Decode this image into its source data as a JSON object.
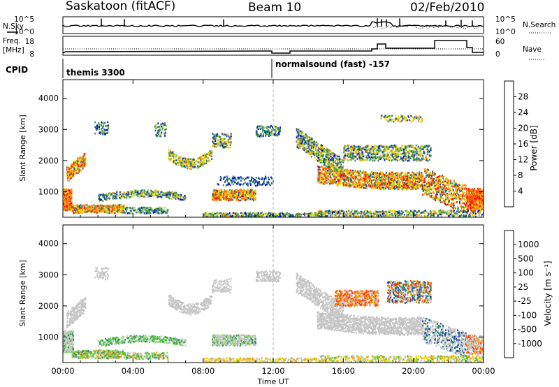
{
  "header": {
    "title": "Saskatoon (fitACF)",
    "beam": "Beam 10",
    "date": "02/Feb/2010"
  },
  "strip_labels": {
    "nsky": "N.Sky",
    "nsearch": "N.Search",
    "freq_top": "Freq.",
    "freq_unit": "[MHz]",
    "nave": "Nave",
    "cpid": "CPID"
  },
  "noise_axis": {
    "left_ticks": [
      "10^5",
      "10^0"
    ],
    "right_ticks": [
      "10^5",
      "10^0"
    ]
  },
  "freq_axis": {
    "left_ticks": [
      "18",
      "8"
    ],
    "right_ticks": [
      "60",
      "0"
    ]
  },
  "cpid_labels": [
    "themis 3300",
    "normalsound (fast) -157"
  ],
  "colors": {
    "scatter_ground": "#c8c8c8",
    "bar_frame": "#000000"
  },
  "chart_data": [
    {
      "type": "heatmap",
      "panel": "power",
      "ylabel": "Slant Range [km]",
      "ylim": [
        180,
        4600
      ],
      "y_ticks": [
        "1000",
        "2000",
        "3000",
        "4000"
      ],
      "x_ticks": [
        "00:00",
        "04:00",
        "08:00",
        "12:00",
        "16:00",
        "20:00",
        "00:00"
      ],
      "xlim_hours": [
        0,
        24
      ],
      "colorbar_label": "Power [dB]",
      "colorbar_ticks": [
        "28",
        "24",
        "20",
        "16",
        "12",
        "8",
        "4"
      ],
      "colorbar_colors": [
        "#ff0000",
        "#ff5a00",
        "#ffa000",
        "#ffe600",
        "#9acd32",
        "#2e8b57",
        "#1e4b9e",
        "#0000ff"
      ]
    },
    {
      "type": "heatmap",
      "panel": "velocity",
      "ylabel": "Slant Range [km]",
      "ylim": [
        180,
        4600
      ],
      "y_ticks": [
        "1000",
        "2000",
        "3000",
        "4000"
      ],
      "x_ticks": [
        "00:00",
        "04:00",
        "08:00",
        "12:00",
        "16:00",
        "20:00",
        "00:00"
      ],
      "xlim_hours": [
        0,
        24
      ],
      "xlabel": "Time UT",
      "colorbar_label": "Velocity [m s⁻¹]",
      "colorbar_ticks": [
        "1000",
        "500",
        "100",
        "25",
        "-25",
        "-100",
        "-500",
        "-1000"
      ],
      "colorbar_colors": [
        "#1c3faa",
        "#1f6f8b",
        "#2e8b57",
        "#4cc43a",
        "#c8c8c8",
        "#c8c8c8",
        "#f0a000",
        "#ff6a00",
        "#ff0000"
      ]
    }
  ]
}
